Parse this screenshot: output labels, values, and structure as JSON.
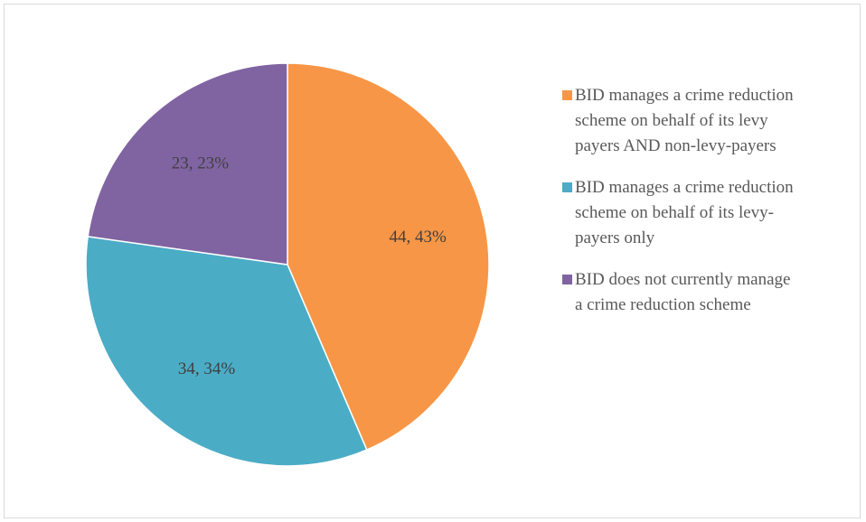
{
  "chart_data": {
    "type": "pie",
    "categories": [
      "BID manages a crime reduction scheme on behalf of its levy payers AND non-levy-payers",
      "BID manages a crime reduction scheme on behalf of its levy-payers only",
      "BID does not currently manage a crime reduction scheme"
    ],
    "values": [
      44,
      34,
      23
    ],
    "value_labels": [
      "44, 43%",
      "34, 34%",
      "23, 23%"
    ],
    "colors": [
      "#f79646",
      "#4bacc6",
      "#8064a2"
    ],
    "legend": "right"
  }
}
